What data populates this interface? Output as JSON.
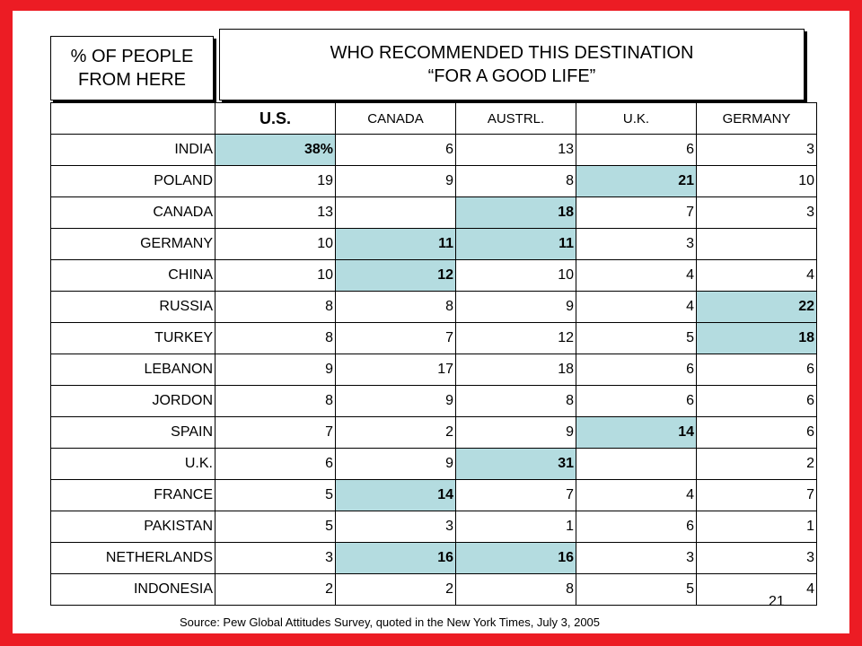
{
  "header": {
    "left_line1": "% OF PEOPLE",
    "left_line2": "FROM HERE",
    "right_line1": "WHO RECOMMENDED THIS DESTINATION",
    "right_line2": "“FOR A GOOD LIFE”"
  },
  "columns": [
    "U.S.",
    "CANADA",
    "AUSTRL.",
    "U.K.",
    "GERMANY"
  ],
  "rows": [
    {
      "label": "INDIA",
      "values": [
        "38%",
        "6",
        "13",
        "6",
        "3"
      ],
      "highlight": [
        0
      ]
    },
    {
      "label": "POLAND",
      "values": [
        "19",
        "9",
        "8",
        "21",
        "10"
      ],
      "highlight": [
        3
      ]
    },
    {
      "label": "CANADA",
      "values": [
        "13",
        "",
        "18",
        "7",
        "3"
      ],
      "highlight": [
        2
      ]
    },
    {
      "label": "GERMANY",
      "values": [
        "10",
        "11",
        "11",
        "3",
        ""
      ],
      "highlight": [
        1,
        2
      ]
    },
    {
      "label": "CHINA",
      "values": [
        "10",
        "12",
        "10",
        "4",
        "4"
      ],
      "highlight": [
        1
      ]
    },
    {
      "label": "RUSSIA",
      "values": [
        "8",
        "8",
        "9",
        "4",
        "22"
      ],
      "highlight": [
        4
      ]
    },
    {
      "label": "TURKEY",
      "values": [
        "8",
        "7",
        "12",
        "5",
        "18"
      ],
      "highlight": [
        4
      ]
    },
    {
      "label": "LEBANON",
      "values": [
        "9",
        "17",
        "18",
        "6",
        "6"
      ],
      "highlight": []
    },
    {
      "label": "JORDON",
      "values": [
        "8",
        "9",
        "8",
        "6",
        "6"
      ],
      "highlight": []
    },
    {
      "label": "SPAIN",
      "values": [
        "7",
        "2",
        "9",
        "14",
        "6"
      ],
      "highlight": [
        3
      ]
    },
    {
      "label": "U.K.",
      "values": [
        "6",
        "9",
        "31",
        "",
        "2"
      ],
      "highlight": [
        2
      ]
    },
    {
      "label": "FRANCE",
      "values": [
        "5",
        "14",
        "7",
        "4",
        "7"
      ],
      "highlight": [
        1
      ]
    },
    {
      "label": "PAKISTAN",
      "values": [
        "5",
        "3",
        "1",
        "6",
        "1"
      ],
      "highlight": []
    },
    {
      "label": "NETHERLANDS",
      "values": [
        "3",
        "16",
        "16",
        "3",
        "3"
      ],
      "highlight": [
        1,
        2
      ]
    },
    {
      "label": "INDONESIA",
      "values": [
        "2",
        "2",
        "8",
        "5",
        "4"
      ],
      "highlight": []
    }
  ],
  "highlight_color": "#b4dce0",
  "border_color": "#ec1c24",
  "page_number": "21",
  "source": "Source:  Pew Global Attitudes Survey, quoted in the New York Times, July 3, 2005"
}
